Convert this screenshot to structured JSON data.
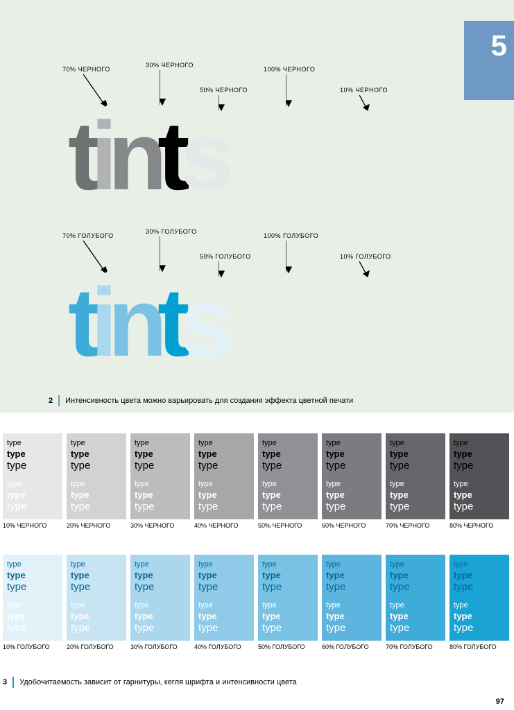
{
  "chapter_num": "5",
  "chapter_tab_bg": "#6d99c4",
  "page_bg_top": "#e8efe7",
  "tints_black": {
    "labels": [
      "70% ЧЕРНОГО",
      "30% ЧЕРНОГО",
      "50% ЧЕРНОГО",
      "100% ЧЕРНОГО",
      "10% ЧЕРНОГО"
    ],
    "letter_colors": [
      "#707173",
      "#b1b2b4",
      "#87888b",
      "#000000",
      "#e6e7e8"
    ]
  },
  "tints_blue": {
    "labels": [
      "70% ГОЛУБОГО",
      "30% ГОЛУБОГО",
      "50% ГОЛУБОГО",
      "100% ГОЛУБОГО",
      "10% ГОЛУБОГО"
    ],
    "letter_colors": [
      "#3eacd9",
      "#abd7ee",
      "#79c2e4",
      "#02a0d2",
      "#e3f2f9"
    ]
  },
  "caption2_num": "2",
  "caption2_bar_color": "#6d99c4",
  "caption2_text": "Интенсивность цвета можно варьировать для создания эффекта цветной печати",
  "caption3_num": "3",
  "caption3_bar_color": "#02a0d2",
  "caption3_text": "Удобочитаемость зависит от гарнитуры, кегля шрифта и интенсивности цвета",
  "type_word": "type",
  "black_row": {
    "labels": [
      "10% ЧЕРНОГО",
      "20% ЧЕРНОГО",
      "30% ЧЕРНОГО",
      "40% ЧЕРНОГО",
      "50% ЧЕРНОГО",
      "60% ЧЕРНОГО",
      "70% ЧЕРНОГО",
      "80% ЧЕРНОГО"
    ],
    "bg": [
      "#e6e7e8",
      "#d1d2d3",
      "#bbbcbe",
      "#a5a7a9",
      "#909194",
      "#7b7c7f",
      "#66676a",
      "#525356"
    ],
    "dark_text": "#000000",
    "light_text": "#ffffff"
  },
  "blue_row": {
    "labels": [
      "10% ГОЛУБОГО",
      "20% ГОЛУБОГО",
      "30% ГОЛУБОГО",
      "40% ГОЛУБОГО",
      "50% ГОЛУБОГО",
      "60% ГОЛУБОГО",
      "70% ГОЛУБОГО",
      "80% ГОЛУБОГО"
    ],
    "bg": [
      "#e3f2f9",
      "#c7e4f3",
      "#abd7ee",
      "#8fcae8",
      "#79c2e4",
      "#5db5df",
      "#3eacd9",
      "#1aa3d4"
    ],
    "dark_text": "#006a9a",
    "light_text": "#ffffff"
  },
  "page_number": "97"
}
